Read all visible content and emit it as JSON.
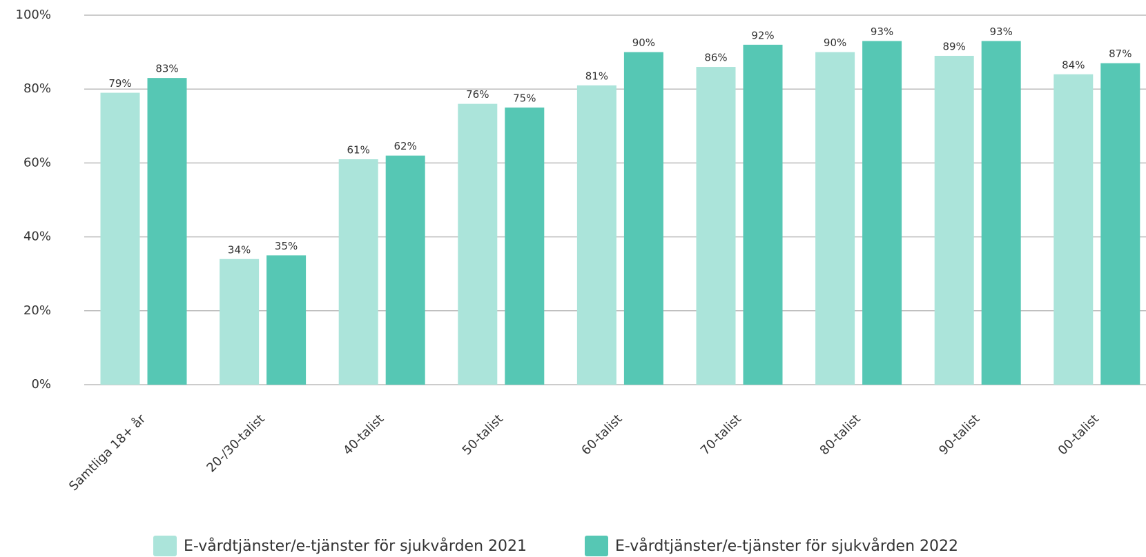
{
  "chart_data": {
    "type": "bar",
    "categories": [
      "Samtliga 18+ år",
      "20-/30-talist",
      "40-talist",
      "50-talist",
      "60-talist",
      "70-talist",
      "80-talist",
      "90-talist",
      "00-talist"
    ],
    "series": [
      {
        "name": "E-vårdtjänster/e-tjänster för sjukvården 2021",
        "color": "#abe4da",
        "values": [
          79,
          34,
          61,
          76,
          81,
          86,
          90,
          89,
          84
        ],
        "value_labels": [
          "79%",
          "34%",
          "61%",
          "76%",
          "81%",
          "86%",
          "90%",
          "89%",
          "84%"
        ]
      },
      {
        "name": "E-vårdtjänster/e-tjänster för sjukvården 2022",
        "color": "#56c7b4",
        "values": [
          83,
          35,
          62,
          75,
          90,
          92,
          93,
          93,
          87
        ],
        "value_labels": [
          "83%",
          "35%",
          "62%",
          "75%",
          "90%",
          "92%",
          "93%",
          "93%",
          "87%"
        ]
      }
    ],
    "ylim": [
      0,
      100
    ],
    "yticks": [
      {
        "value": 0,
        "label": "0%"
      },
      {
        "value": 20,
        "label": "20%"
      },
      {
        "value": 40,
        "label": "40%"
      },
      {
        "value": 60,
        "label": "60%"
      },
      {
        "value": 80,
        "label": "80%"
      },
      {
        "value": 100,
        "label": "100%"
      }
    ],
    "grid": true,
    "legend": "bottom"
  }
}
